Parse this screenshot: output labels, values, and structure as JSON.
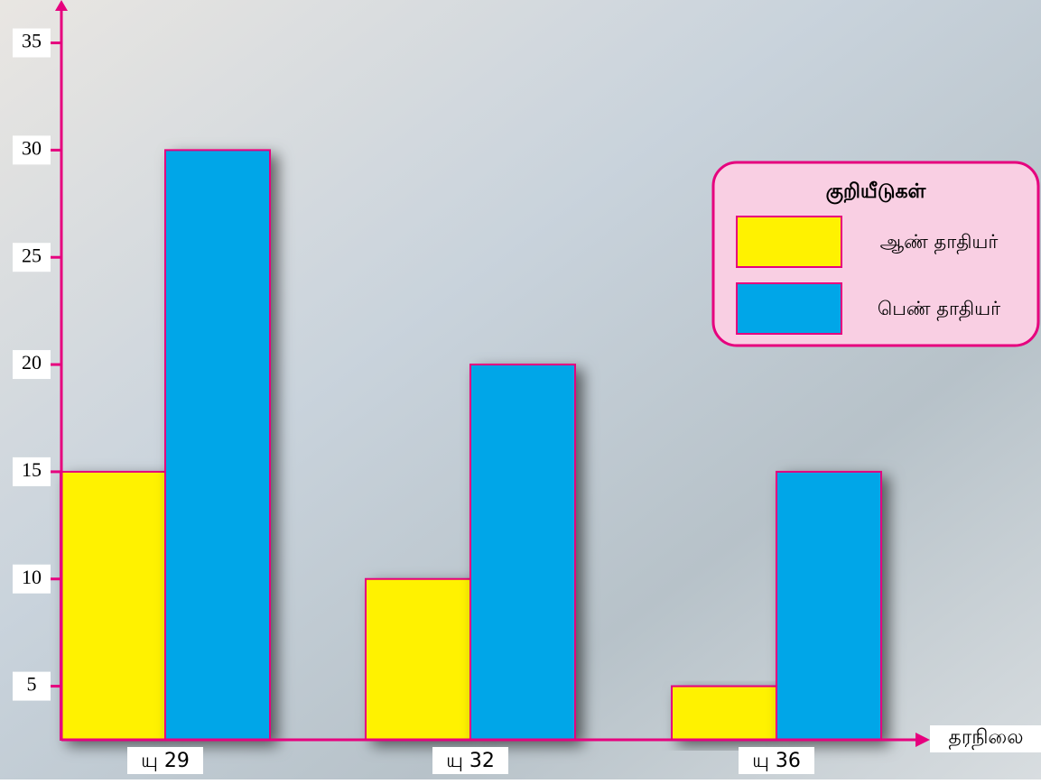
{
  "chart_data": {
    "type": "bar",
    "categories": [
      "யு 29",
      "யு 32",
      "யு 36"
    ],
    "series": [
      {
        "name": "ஆண் தாதியர்",
        "color": "#fff200",
        "values": [
          15,
          10,
          5
        ]
      },
      {
        "name": "பெண் தாதியர்",
        "color": "#00a6e8",
        "values": [
          30,
          20,
          15
        ]
      }
    ],
    "x_label": "தரநிலை",
    "legend_title": "குறியீடுகள்",
    "legend": "top-right",
    "ylim": [
      2.5,
      37
    ],
    "yticks": [
      5,
      10,
      15,
      20,
      25,
      30,
      35
    ],
    "axis_color": "#e6007e"
  }
}
